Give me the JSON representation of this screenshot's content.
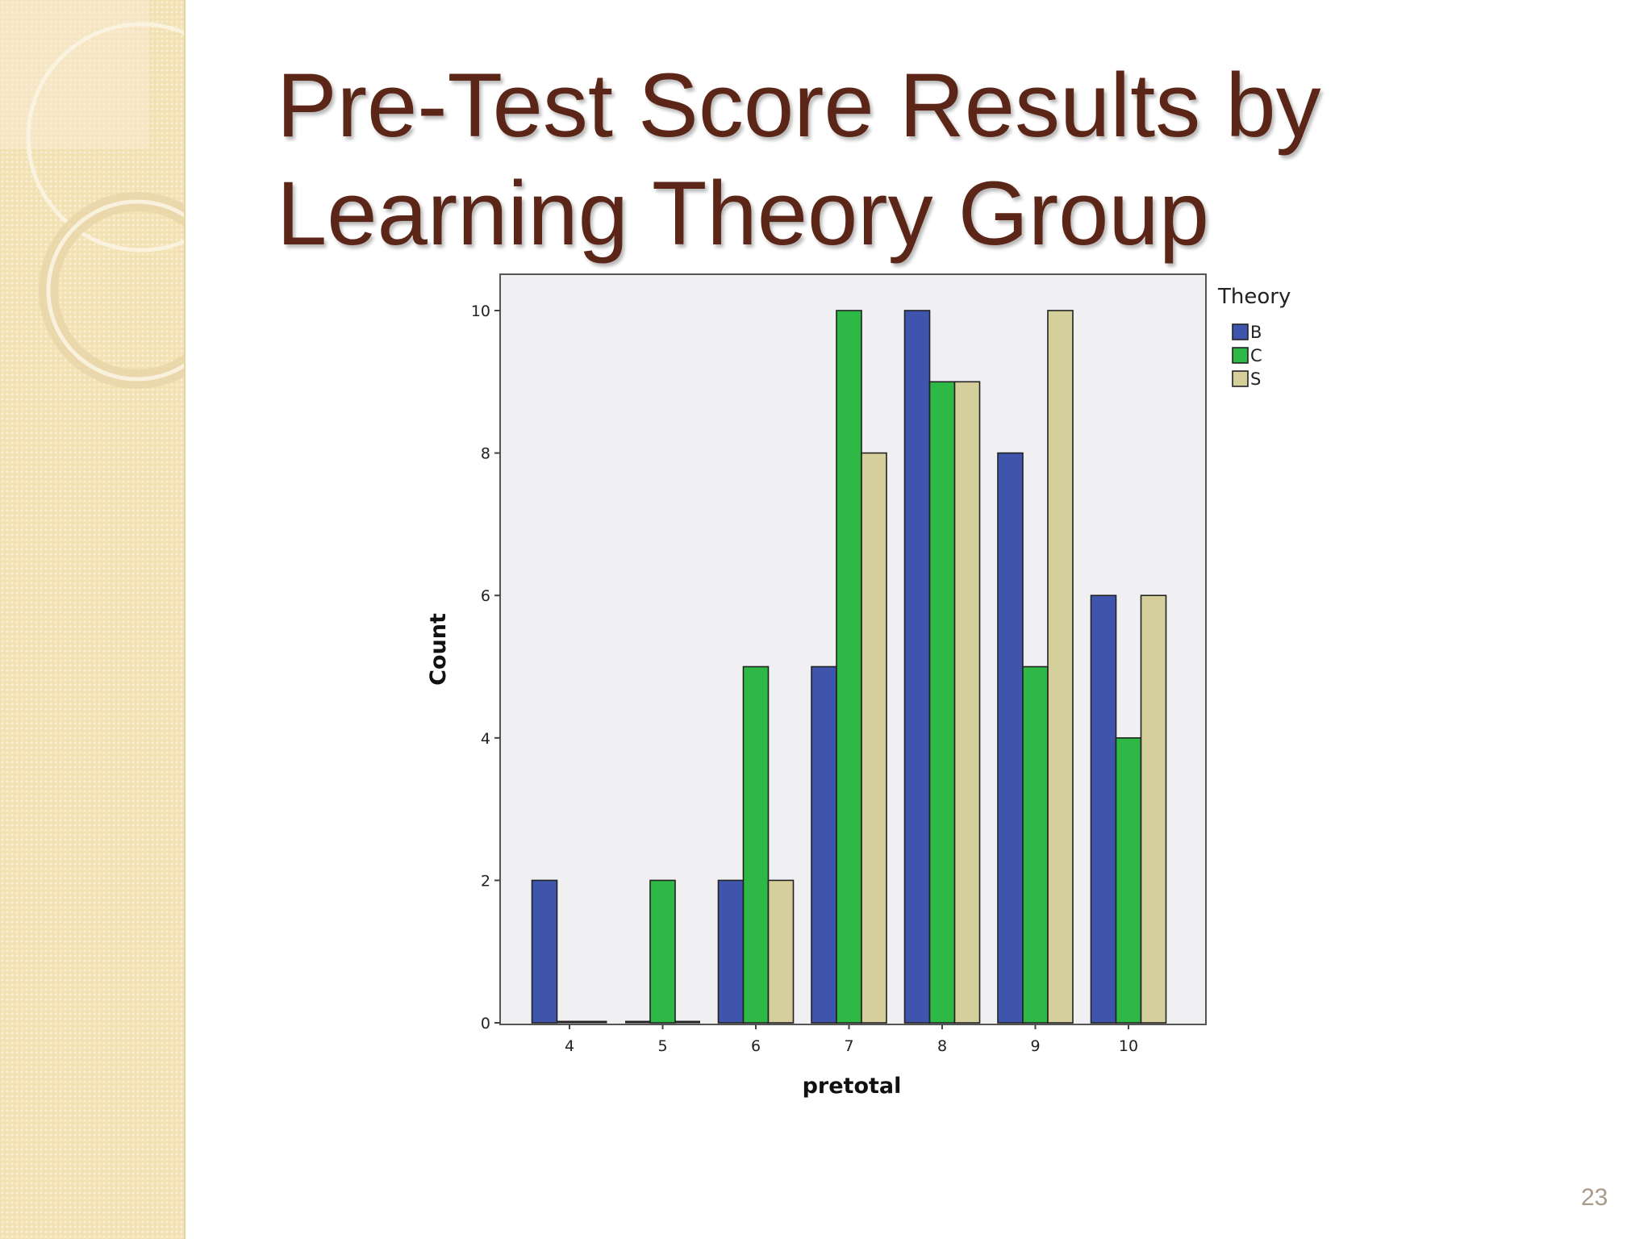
{
  "slide": {
    "title_line1": "Pre-Test Score Results by",
    "title_line2": "Learning Theory Group",
    "page_number": "23"
  },
  "chart_data": {
    "type": "bar",
    "title": "",
    "xlabel": "pretotal",
    "ylabel": "Count",
    "categories": [
      "4",
      "5",
      "6",
      "7",
      "8",
      "9",
      "10"
    ],
    "ylim": [
      0,
      10
    ],
    "yticks": [
      "0",
      "2",
      "4",
      "6",
      "8",
      "10"
    ],
    "legend_title": "Theory",
    "legend_position": "right",
    "grid": false,
    "series": [
      {
        "name": "B",
        "color": "#3f55ad",
        "values": [
          2,
          0,
          2,
          5,
          10,
          8,
          6
        ]
      },
      {
        "name": "C",
        "color": "#2eb946",
        "values": [
          0,
          2,
          5,
          10,
          9,
          5,
          4
        ]
      },
      {
        "name": "S",
        "color": "#d4cf9b",
        "values": [
          0,
          0,
          2,
          8,
          9,
          10,
          6
        ]
      }
    ]
  }
}
